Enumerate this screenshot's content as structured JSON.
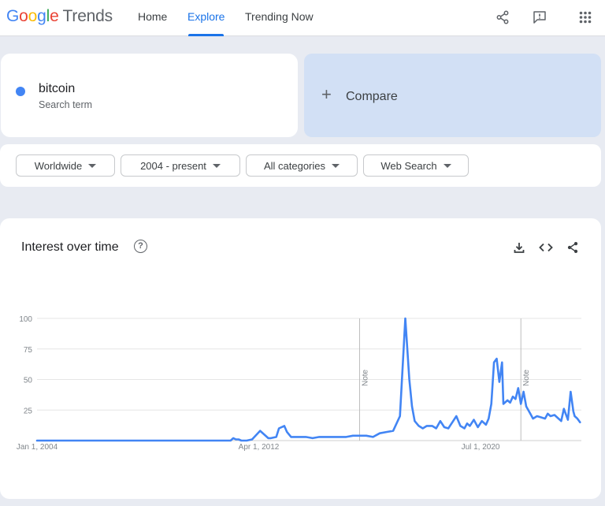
{
  "app": {
    "logo_google_letters": [
      "G",
      "o",
      "o",
      "g",
      "l",
      "e"
    ],
    "logo_product": "Trends"
  },
  "nav": {
    "home": "Home",
    "explore": "Explore",
    "trending_now": "Trending Now",
    "active": "Explore"
  },
  "icons": {
    "share": "share-icon",
    "feedback": "feedback-icon",
    "apps": "apps-grid-icon",
    "download": "download-icon",
    "embed": "embed-code-icon",
    "chart_share": "share-icon",
    "help": "help-icon"
  },
  "search_term": {
    "name": "bitcoin",
    "type": "Search term",
    "color": "#4285f4"
  },
  "compare": {
    "plus": "+",
    "label": "Compare"
  },
  "filters": {
    "region": "Worldwide",
    "time": "2004 - present",
    "category": "All categories",
    "property": "Web Search"
  },
  "interest": {
    "title": "Interest over time",
    "help_glyph": "?"
  },
  "chart_data": {
    "type": "line",
    "title": "Interest over time",
    "xlabel": "",
    "ylabel": "",
    "ylim": [
      0,
      100
    ],
    "y_ticks": [
      25,
      50,
      75,
      100
    ],
    "x_tick_labels": [
      "Jan 1, 2004",
      "Apr 1, 2012",
      "Jul 1, 2020"
    ],
    "x_range": [
      2004.0,
      2024.25
    ],
    "grid": true,
    "legend": "none",
    "annotations": [
      {
        "label": "Note",
        "x": 2016.0
      },
      {
        "label": "Note",
        "x": 2022.0
      }
    ],
    "series": [
      {
        "color": "#4285f4",
        "x": [
          2004.0,
          2008.0,
          2011.2,
          2011.3,
          2011.4,
          2011.5,
          2011.6,
          2011.8,
          2012.0,
          2012.3,
          2012.6,
          2012.7,
          2012.9,
          2013.0,
          2013.2,
          2013.3,
          2013.45,
          2013.6,
          2013.75,
          2013.85,
          2014.0,
          2014.25,
          2014.5,
          2014.75,
          2015.0,
          2015.25,
          2015.5,
          2015.75,
          2016.0,
          2016.25,
          2016.5,
          2016.75,
          2017.0,
          2017.25,
          2017.5,
          2017.7,
          2017.85,
          2017.95,
          2018.05,
          2018.2,
          2018.35,
          2018.5,
          2018.7,
          2018.85,
          2019.0,
          2019.15,
          2019.3,
          2019.45,
          2019.6,
          2019.75,
          2019.9,
          2020.0,
          2020.1,
          2020.25,
          2020.4,
          2020.55,
          2020.7,
          2020.8,
          2020.9,
          2021.0,
          2021.1,
          2021.2,
          2021.3,
          2021.35,
          2021.5,
          2021.6,
          2021.7,
          2021.8,
          2021.9,
          2022.0,
          2022.1,
          2022.2,
          2022.35,
          2022.45,
          2022.6,
          2022.75,
          2022.9,
          2023.0,
          2023.1,
          2023.25,
          2023.4,
          2023.5,
          2023.6,
          2023.75,
          2023.85,
          2023.95,
          2024.0,
          2024.1,
          2024.2
        ],
        "values": [
          0,
          0,
          0,
          2,
          1,
          1,
          0,
          0,
          1,
          8,
          2,
          2,
          3,
          10,
          12,
          7,
          3,
          3,
          3,
          3,
          3,
          2,
          3,
          3,
          3,
          3,
          3,
          4,
          4,
          4,
          3,
          6,
          7,
          8,
          20,
          100,
          50,
          28,
          16,
          12,
          10,
          12,
          12,
          10,
          16,
          11,
          10,
          15,
          20,
          12,
          10,
          14,
          12,
          17,
          11,
          16,
          13,
          18,
          30,
          64,
          67,
          48,
          64,
          30,
          33,
          31,
          36,
          34,
          43,
          30,
          40,
          28,
          22,
          18,
          20,
          19,
          18,
          22,
          20,
          21,
          18,
          16,
          26,
          17,
          40,
          24,
          20,
          18,
          15
        ]
      }
    ]
  }
}
